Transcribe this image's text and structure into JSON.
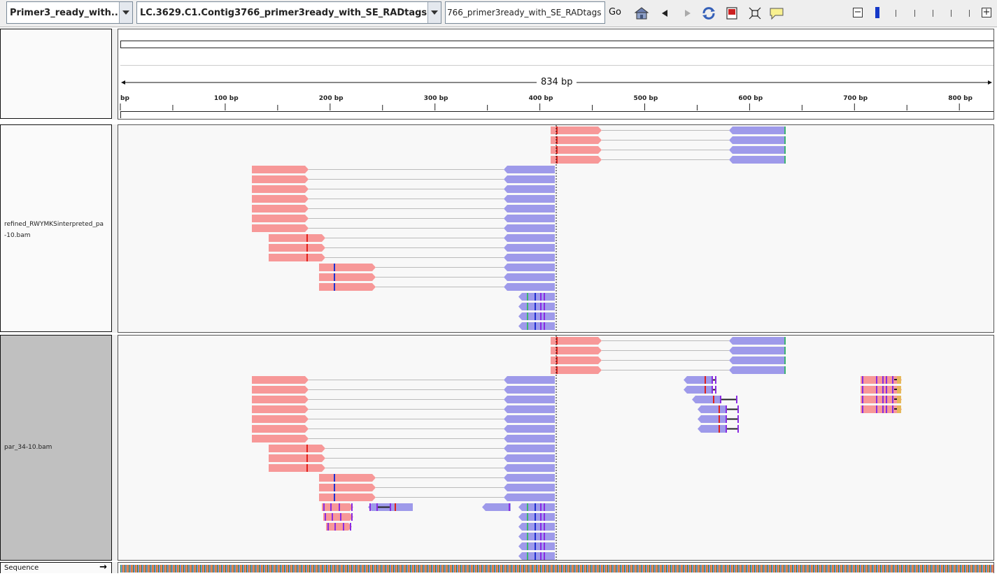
{
  "toolbar": {
    "genome_select": "Primer3_ready_with...",
    "chromosome_select": "LC.3629.C1.Contig3766_primer3ready_with_SE_RADtags",
    "locus_input": "766_primer3ready_with_SE_RADtags",
    "go_label": "Go",
    "icons": [
      "home-icon",
      "back-icon",
      "forward-icon",
      "refresh-icon",
      "roi-icon",
      "fit-icon",
      "popup-text-icon"
    ],
    "zoom_out_label": "−",
    "zoom_in_label": "+"
  },
  "ruler": {
    "span_label": "834 bp",
    "ticks": [
      {
        "label": "bp",
        "pos": 0
      },
      {
        "label": "100 bp",
        "pos": 100
      },
      {
        "label": "200 bp",
        "pos": 200
      },
      {
        "label": "300 bp",
        "pos": 300
      },
      {
        "label": "400 bp",
        "pos": 400
      },
      {
        "label": "500 bp",
        "pos": 500
      },
      {
        "label": "600 bp",
        "pos": 600
      },
      {
        "label": "700 bp",
        "pos": 700
      },
      {
        "label": "800 bp",
        "pos": 800
      }
    ],
    "total_bp": 834
  },
  "tracks": [
    {
      "name": "refined_RWYMKSinterpreted_pa\n-10.bam",
      "label_line1": "refined_RWYMKSinterpreted_pa",
      "label_line2": "-10.bam"
    },
    {
      "name": "par_34-10.bam",
      "label_line1": "par_34-10.bam"
    }
  ],
  "sequence_track": {
    "label": "Sequence",
    "arrow": "→"
  },
  "colors": {
    "forward_read": "#f79898",
    "reverse_read": "#9e9aea",
    "mismatch_red": "#e0201a",
    "mismatch_blue": "#2030d0",
    "mismatch_green": "#3cb371",
    "insertion": "#8a2be2",
    "selected_track_bg": "#c0c0c0"
  }
}
